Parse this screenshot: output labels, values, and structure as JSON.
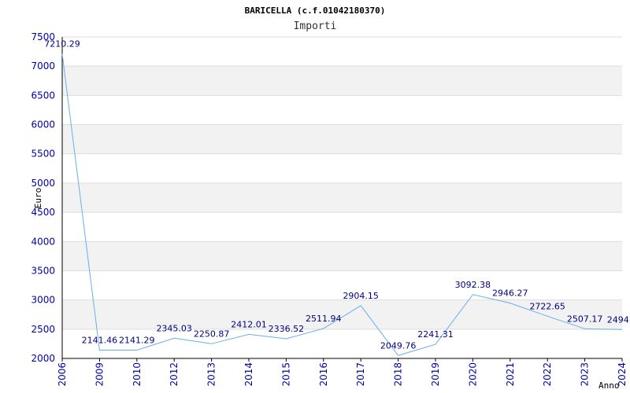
{
  "chart_data": {
    "type": "line",
    "title": "BARICELLA (c.f.01042180370)",
    "subtitle": "Importi",
    "xlabel": "Anno",
    "ylabel": "Euro",
    "categories": [
      "2006",
      "2009",
      "2010",
      "2012",
      "2013",
      "2014",
      "2015",
      "2016",
      "2017",
      "2018",
      "2019",
      "2020",
      "2021",
      "2022",
      "2023",
      "2024"
    ],
    "values": [
      7210.29,
      2141.46,
      2141.29,
      2345.03,
      2250.87,
      2412.01,
      2336.52,
      2511.94,
      2904.15,
      2049.76,
      2241.31,
      3092.38,
      2946.27,
      2722.65,
      2507.17,
      2494.0
    ],
    "value_labels": [
      "7210.29",
      "2141.46",
      "2141.29",
      "2345.03",
      "2250.87",
      "2412.01",
      "2336.52",
      "2511.94",
      "2904.15",
      "2049.76",
      "2241.31",
      "3092.38",
      "2946.27",
      "2722.65",
      "2507.17",
      "2494.0"
    ],
    "ylim": [
      2000,
      7500
    ],
    "yticks": [
      2000,
      2500,
      3000,
      3500,
      4000,
      4500,
      5000,
      5500,
      6000,
      6500,
      7000,
      7500
    ],
    "grid": true,
    "colors": {
      "line": "#6aaee8",
      "band": "#f2f2f2",
      "grid": "#dddddd",
      "axis": "#000000",
      "tick_text": "#0000aa",
      "label_text": "#000080"
    }
  }
}
